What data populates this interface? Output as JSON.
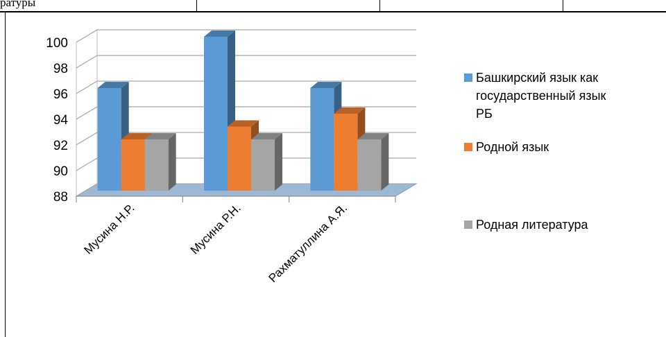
{
  "header_fragment": "ратуры",
  "chart_data": {
    "type": "bar",
    "categories": [
      "Мусина Н.Р.",
      "Мусина Р.Н.",
      "Рахматуллина А.Я."
    ],
    "series": [
      {
        "name": "Башкирский язык как государственный язык РБ",
        "values": [
          96,
          100,
          96
        ],
        "color": "#5B9BD5"
      },
      {
        "name": "Родной язык",
        "values": [
          92,
          93,
          94
        ],
        "color": "#ED7D31"
      },
      {
        "name": "Родная литература",
        "values": [
          92,
          92,
          92
        ],
        "color": "#A5A5A5"
      }
    ],
    "legend_lines": [
      [
        "Башкирский язык как",
        "государственный язык",
        "РБ"
      ],
      [
        "Родной язык"
      ],
      [
        "Родная литература"
      ]
    ],
    "yticks": [
      88,
      90,
      92,
      94,
      96,
      98,
      100
    ],
    "ylim": [
      88,
      100
    ],
    "title": "",
    "xlabel": "",
    "ylabel": "",
    "grid": true,
    "legend_position": "right",
    "floor_color": "#9DB8D4"
  }
}
